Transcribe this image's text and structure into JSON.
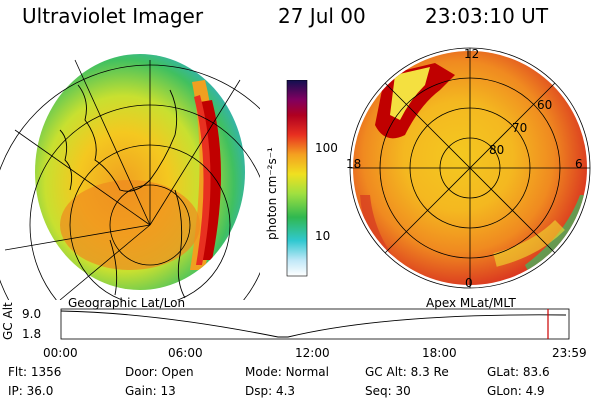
{
  "header": {
    "title": "Ultraviolet Imager",
    "date": "27 Jul 00",
    "time": "23:03:10 UT"
  },
  "colorbar": {
    "label": "photon cm⁻²s⁻¹",
    "ticks": [
      "100",
      "10"
    ]
  },
  "geo_panel": {
    "label": "Geographic Lat/Lon"
  },
  "polar_panel": {
    "label": "Apex MLat/MLT",
    "mlt_labels": [
      "12",
      "18",
      "6",
      "0"
    ],
    "lat_labels": [
      "60",
      "70",
      "80"
    ]
  },
  "altitude_plot": {
    "ylabel": "GC Alt",
    "yticks": [
      "9.0",
      "1.8"
    ],
    "xticks": [
      "00:00",
      "06:00",
      "12:00",
      "18:00",
      "23:59"
    ]
  },
  "status": {
    "row1": [
      {
        "label": "Flt:",
        "value": "1356"
      },
      {
        "label": "Door:",
        "value": "Open"
      },
      {
        "label": "Mode:",
        "value": "Normal"
      },
      {
        "label": "GC Alt:",
        "value": "8.3 Re"
      },
      {
        "label": "GLat:",
        "value": "83.6"
      }
    ],
    "row2": [
      {
        "label": "IP:",
        "value": "36.0"
      },
      {
        "label": "Gain:",
        "value": "13"
      },
      {
        "label": "Dsp:",
        "value": "4.3"
      },
      {
        "label": "Seq:",
        "value": "30"
      },
      {
        "label": "GLon:",
        "value": "4.9"
      }
    ]
  },
  "colors": {
    "accent_red": "#cc0000",
    "band_dark_red": "#b00000",
    "band_orange": "#f08a00",
    "band_yellow": "#f2d000",
    "band_green": "#2fb34a"
  }
}
